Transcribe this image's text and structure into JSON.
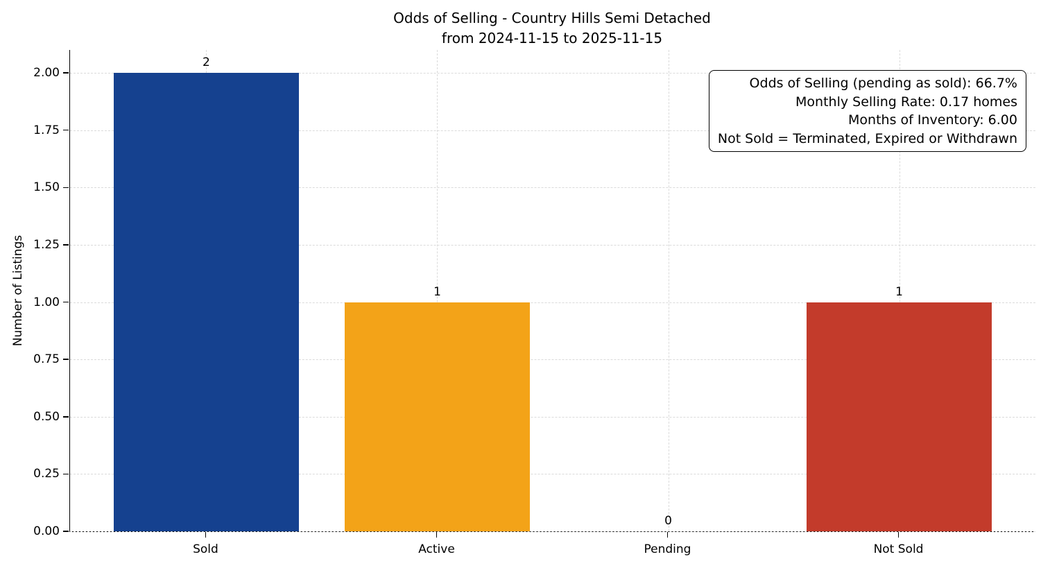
{
  "chart_data": {
    "type": "bar",
    "title": "Odds of Selling - Country Hills Semi Detached",
    "subtitle": "from 2024-11-15 to 2025-11-15",
    "ylabel": "Number of Listings",
    "xlabel": "",
    "categories": [
      "Sold",
      "Active",
      "Pending",
      "Not Sold"
    ],
    "values": [
      2,
      1,
      0,
      1
    ],
    "bar_value_labels": [
      "2",
      "1",
      "0",
      "1"
    ],
    "bar_colors": [
      "#15418f",
      "#f3a318",
      "#9b9b9b",
      "#c33b2b"
    ],
    "ylim": [
      0,
      2.1
    ],
    "ytick_values": [
      0,
      0.25,
      0.5,
      0.75,
      1,
      1.25,
      1.5,
      1.75,
      2
    ],
    "ytick_labels": [
      "0.00",
      "0.25",
      "0.50",
      "0.75",
      "1.00",
      "1.25",
      "1.50",
      "1.75",
      "2.00"
    ],
    "grid": "dashed",
    "legend": "none",
    "annotation_lines": [
      "Odds of Selling (pending as sold): 66.7%",
      "Monthly Selling Rate: 0.17 homes",
      "Months of Inventory: 6.00",
      "Not Sold = Terminated, Expired or Withdrawn"
    ]
  }
}
